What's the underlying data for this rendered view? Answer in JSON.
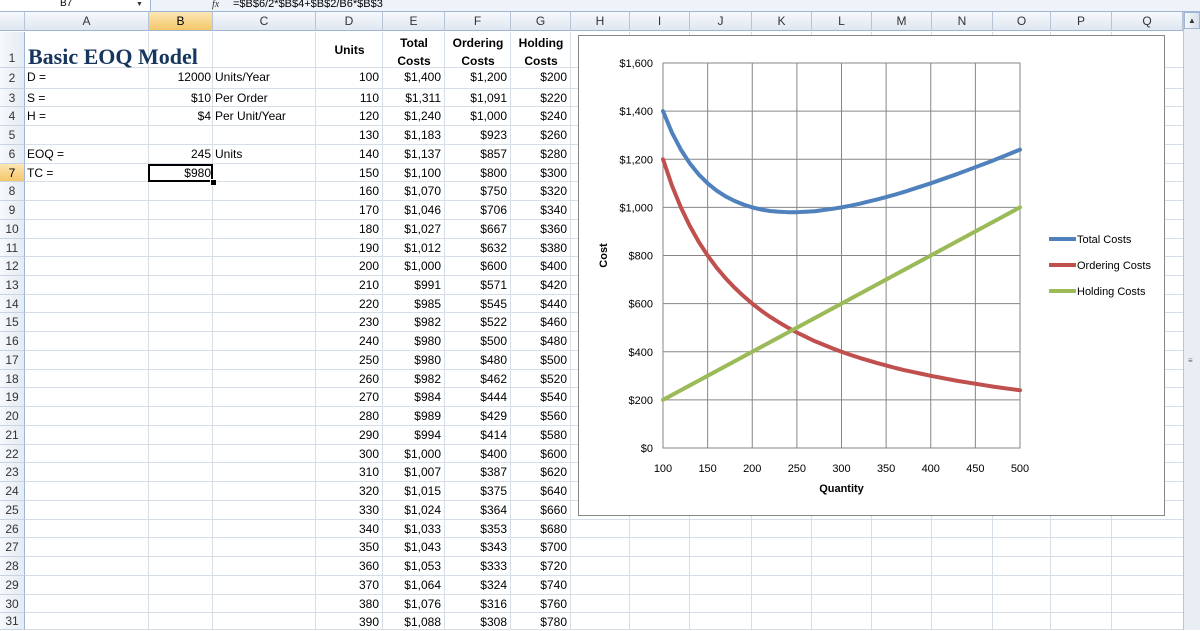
{
  "formula_bar": {
    "name_box": "B7",
    "fx_icon": "function-icon",
    "formula": "=$B$6/2*$B$4+$B$2/B6*$B$3"
  },
  "columns": [
    "A",
    "B",
    "C",
    "D",
    "E",
    "F",
    "G",
    "H",
    "I",
    "J",
    "K",
    "L",
    "M",
    "N",
    "O",
    "P",
    "Q"
  ],
  "selected_column": "B",
  "selected_row": "7",
  "rows": [
    "1",
    "2",
    "3",
    "4",
    "5",
    "6",
    "7",
    "8",
    "9",
    "10",
    "11",
    "12",
    "13",
    "14",
    "15",
    "16",
    "17",
    "18",
    "19",
    "20",
    "21",
    "22",
    "23",
    "24",
    "25",
    "26",
    "27",
    "28",
    "29",
    "30",
    "31"
  ],
  "model": {
    "title": "Basic EOQ Model",
    "params": [
      {
        "label": "D =",
        "value": "12000",
        "unit": "Units/Year"
      },
      {
        "label": "S =",
        "value": "$10",
        "unit": "Per Order"
      },
      {
        "label": "H =",
        "value": "$4",
        "unit": "Per Unit/Year"
      }
    ],
    "eoq": {
      "label": "EOQ =",
      "value": "245",
      "unit": "Units"
    },
    "tc": {
      "label": "TC =",
      "value": "$980"
    }
  },
  "table": {
    "headers": {
      "units": "Units",
      "total": [
        "Total",
        "Costs"
      ],
      "ordering": [
        "Ordering",
        "Costs"
      ],
      "holding": [
        "Holding",
        "Costs"
      ]
    },
    "rows": [
      [
        "100",
        "$1,400",
        "$1,200",
        "$200"
      ],
      [
        "110",
        "$1,311",
        "$1,091",
        "$220"
      ],
      [
        "120",
        "$1,240",
        "$1,000",
        "$240"
      ],
      [
        "130",
        "$1,183",
        "$923",
        "$260"
      ],
      [
        "140",
        "$1,137",
        "$857",
        "$280"
      ],
      [
        "150",
        "$1,100",
        "$800",
        "$300"
      ],
      [
        "160",
        "$1,070",
        "$750",
        "$320"
      ],
      [
        "170",
        "$1,046",
        "$706",
        "$340"
      ],
      [
        "180",
        "$1,027",
        "$667",
        "$360"
      ],
      [
        "190",
        "$1,012",
        "$632",
        "$380"
      ],
      [
        "200",
        "$1,000",
        "$600",
        "$400"
      ],
      [
        "210",
        "$991",
        "$571",
        "$420"
      ],
      [
        "220",
        "$985",
        "$545",
        "$440"
      ],
      [
        "230",
        "$982",
        "$522",
        "$460"
      ],
      [
        "240",
        "$980",
        "$500",
        "$480"
      ],
      [
        "250",
        "$980",
        "$480",
        "$500"
      ],
      [
        "260",
        "$982",
        "$462",
        "$520"
      ],
      [
        "270",
        "$984",
        "$444",
        "$540"
      ],
      [
        "280",
        "$989",
        "$429",
        "$560"
      ],
      [
        "290",
        "$994",
        "$414",
        "$580"
      ],
      [
        "300",
        "$1,000",
        "$400",
        "$600"
      ],
      [
        "310",
        "$1,007",
        "$387",
        "$620"
      ],
      [
        "320",
        "$1,015",
        "$375",
        "$640"
      ],
      [
        "330",
        "$1,024",
        "$364",
        "$660"
      ],
      [
        "340",
        "$1,033",
        "$353",
        "$680"
      ],
      [
        "350",
        "$1,043",
        "$343",
        "$700"
      ],
      [
        "360",
        "$1,053",
        "$333",
        "$720"
      ],
      [
        "370",
        "$1,064",
        "$324",
        "$740"
      ],
      [
        "380",
        "$1,076",
        "$316",
        "$760"
      ],
      [
        "390",
        "$1,088",
        "$308",
        "$780"
      ]
    ]
  },
  "chart_data": {
    "type": "line",
    "xlabel": "Quantity",
    "ylabel": "Cost",
    "xlim": [
      100,
      500
    ],
    "ylim": [
      0,
      1600
    ],
    "x_ticks": [
      "100",
      "150",
      "200",
      "250",
      "300",
      "350",
      "400",
      "450",
      "500"
    ],
    "y_ticks": [
      "$0",
      "$200",
      "$400",
      "$600",
      "$800",
      "$1,000",
      "$1,200",
      "$1,400",
      "$1,600"
    ],
    "grid": true,
    "legend": "right",
    "x": [
      100,
      110,
      120,
      130,
      140,
      150,
      160,
      170,
      180,
      190,
      200,
      210,
      220,
      230,
      240,
      250,
      260,
      270,
      280,
      290,
      300,
      310,
      320,
      330,
      340,
      350,
      360,
      370,
      380,
      390,
      400,
      410,
      420,
      430,
      440,
      450,
      460,
      470,
      480,
      490,
      500
    ],
    "series": [
      {
        "name": "Total Costs",
        "color": "#4f81bd",
        "values": [
          1400,
          1311,
          1240,
          1183,
          1137,
          1100,
          1070,
          1046,
          1027,
          1012,
          1000,
          991,
          985,
          982,
          980,
          980,
          982,
          984,
          989,
          994,
          1000,
          1007,
          1015,
          1024,
          1033,
          1043,
          1053,
          1064,
          1076,
          1088,
          1100,
          1113,
          1126,
          1139,
          1153,
          1167,
          1181,
          1195,
          1210,
          1225,
          1240
        ]
      },
      {
        "name": "Ordering Costs",
        "color": "#c0504d",
        "values": [
          1200,
          1091,
          1000,
          923,
          857,
          800,
          750,
          706,
          667,
          632,
          600,
          571,
          545,
          522,
          500,
          480,
          462,
          444,
          429,
          414,
          400,
          387,
          375,
          364,
          353,
          343,
          333,
          324,
          316,
          308,
          300,
          293,
          286,
          279,
          273,
          267,
          261,
          255,
          250,
          245,
          240
        ]
      },
      {
        "name": "Holding Costs",
        "color": "#9bbb59",
        "values": [
          200,
          220,
          240,
          260,
          280,
          300,
          320,
          340,
          360,
          380,
          400,
          420,
          440,
          460,
          480,
          500,
          520,
          540,
          560,
          580,
          600,
          620,
          640,
          660,
          680,
          700,
          720,
          740,
          760,
          780,
          800,
          820,
          840,
          860,
          880,
          900,
          920,
          940,
          960,
          980,
          1000
        ]
      }
    ]
  }
}
